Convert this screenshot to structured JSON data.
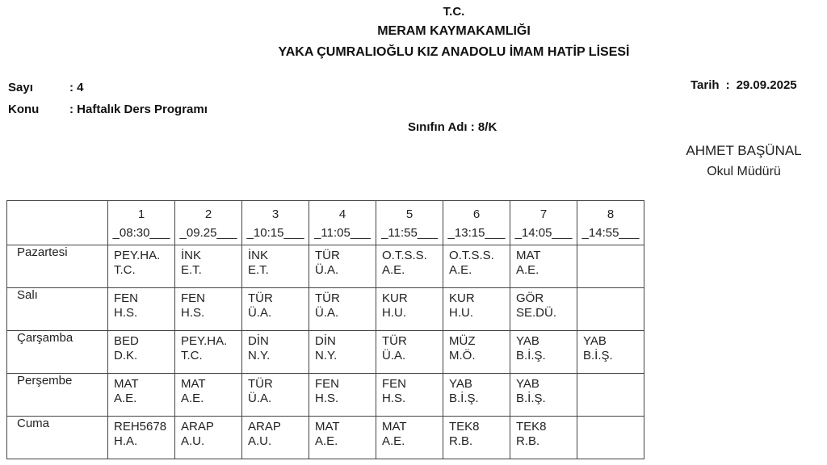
{
  "letterhead": {
    "line1": "T.C.",
    "line2": "MERAM KAYMAKAMLIĞI",
    "line3": "YAKA ÇUMRALIOĞLU KIZ ANADOLU İMAM HATİP LİSESİ"
  },
  "meta": {
    "sayi_label": "Sayı",
    "sayi_value": ": 4",
    "konu_label": "Konu",
    "konu_value": ": Haftalık Ders Programı",
    "tarih_label": "Tarih",
    "tarih_separator": ":",
    "tarih_value": "29.09.2025"
  },
  "class_line": "Sınıfın Adı : 8/K",
  "signature": {
    "name": "AHMET BAŞÜNAL",
    "role": "Okul Müdürü"
  },
  "table": {
    "periods": [
      {
        "num": "1",
        "time": "_08:30___"
      },
      {
        "num": "2",
        "time": "_09.25___"
      },
      {
        "num": "3",
        "time": "_10:15___"
      },
      {
        "num": "4",
        "time": "_11:05___"
      },
      {
        "num": "5",
        "time": "_11:55___"
      },
      {
        "num": "6",
        "time": "_13:15___"
      },
      {
        "num": "7",
        "time": "_14:05___"
      },
      {
        "num": "8",
        "time": "_14:55___"
      }
    ],
    "days": [
      {
        "name": "Pazartesi",
        "lessons": [
          {
            "subject": "PEY.HA.",
            "teacher": "T.C."
          },
          {
            "subject": "İNK",
            "teacher": "E.T."
          },
          {
            "subject": "İNK",
            "teacher": "E.T."
          },
          {
            "subject": "TÜR",
            "teacher": "Ü.A."
          },
          {
            "subject": "O.T.S.S.",
            "teacher": "A.E."
          },
          {
            "subject": "O.T.S.S.",
            "teacher": "A.E."
          },
          {
            "subject": "MAT",
            "teacher": "A.E."
          },
          {
            "subject": "",
            "teacher": ""
          }
        ]
      },
      {
        "name": "Salı",
        "lessons": [
          {
            "subject": "FEN",
            "teacher": "H.S."
          },
          {
            "subject": "FEN",
            "teacher": "H.S."
          },
          {
            "subject": "TÜR",
            "teacher": "Ü.A."
          },
          {
            "subject": "TÜR",
            "teacher": "Ü.A."
          },
          {
            "subject": "KUR",
            "teacher": "H.U."
          },
          {
            "subject": "KUR",
            "teacher": "H.U."
          },
          {
            "subject": "GÖR",
            "teacher": "SE.DÜ."
          },
          {
            "subject": "",
            "teacher": ""
          }
        ]
      },
      {
        "name": "Çarşamba",
        "lessons": [
          {
            "subject": "BED",
            "teacher": "D.K."
          },
          {
            "subject": "PEY.HA.",
            "teacher": "T.C."
          },
          {
            "subject": "DİN",
            "teacher": "N.Y."
          },
          {
            "subject": "DİN",
            "teacher": "N.Y."
          },
          {
            "subject": "TÜR",
            "teacher": "Ü.A."
          },
          {
            "subject": "MÜZ",
            "teacher": "M.Ö."
          },
          {
            "subject": "YAB",
            "teacher": "B.İ.Ş."
          },
          {
            "subject": "YAB",
            "teacher": "B.İ.Ş."
          }
        ]
      },
      {
        "name": "Perşembe",
        "lessons": [
          {
            "subject": "MAT",
            "teacher": "A.E."
          },
          {
            "subject": "MAT",
            "teacher": "A.E."
          },
          {
            "subject": "TÜR",
            "teacher": "Ü.A."
          },
          {
            "subject": "FEN",
            "teacher": "H.S."
          },
          {
            "subject": "FEN",
            "teacher": "H.S."
          },
          {
            "subject": "YAB",
            "teacher": "B.İ.Ş."
          },
          {
            "subject": "YAB",
            "teacher": "B.İ.Ş."
          },
          {
            "subject": "",
            "teacher": ""
          }
        ]
      },
      {
        "name": "Cuma",
        "lessons": [
          {
            "subject": "REH5678",
            "teacher": "H.A."
          },
          {
            "subject": "ARAP",
            "teacher": "A.U."
          },
          {
            "subject": "ARAP",
            "teacher": "A.U."
          },
          {
            "subject": "MAT",
            "teacher": "A.E."
          },
          {
            "subject": "MAT",
            "teacher": "A.E."
          },
          {
            "subject": "TEK8",
            "teacher": "R.B."
          },
          {
            "subject": "TEK8",
            "teacher": "R.B."
          },
          {
            "subject": "",
            "teacher": ""
          }
        ]
      }
    ]
  }
}
